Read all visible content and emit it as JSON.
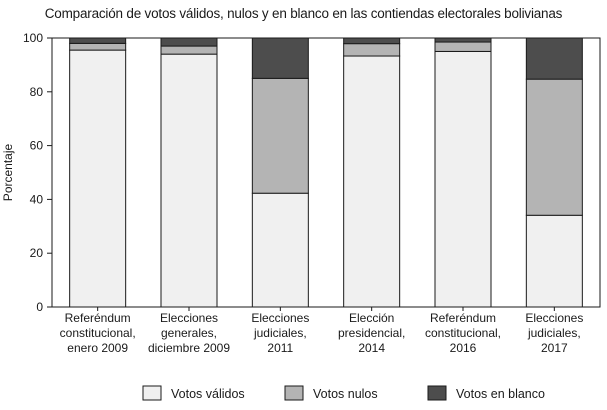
{
  "chart_data": {
    "type": "bar",
    "stacked": true,
    "title": "Comparación de votos válidos, nulos y en blanco en las contiendas electorales bolivianas",
    "xlabel": "",
    "ylabel": "Porcentaje",
    "ylim": [
      0,
      100
    ],
    "yticks": [
      0,
      20,
      40,
      60,
      80,
      100
    ],
    "categories": [
      [
        "Referéndum",
        "constitucional,",
        "enero 2009"
      ],
      [
        "Elecciones",
        "generales,",
        "diciembre 2009"
      ],
      [
        "Elecciones",
        "judiciales,",
        "2011"
      ],
      [
        "Elección",
        "presidencial,",
        "2014"
      ],
      [
        "Referéndum",
        "constitucional,",
        "2016"
      ],
      [
        "Elecciones",
        "judiciales,",
        "2017"
      ]
    ],
    "series": [
      {
        "name": "Votos válidos",
        "color": "#f0f0f0",
        "values": [
          95.5,
          94,
          42.3,
          93.3,
          95,
          34.1
        ]
      },
      {
        "name": "Votos nulos",
        "color": "#b4b4b4",
        "values": [
          2.5,
          3,
          42.7,
          4.6,
          3.5,
          50.6
        ]
      },
      {
        "name": "Votos en blanco",
        "color": "#4d4d4d",
        "values": [
          2,
          3,
          15,
          2.1,
          1.5,
          15.3
        ]
      }
    ],
    "legend_position": "bottom",
    "grid": false
  }
}
